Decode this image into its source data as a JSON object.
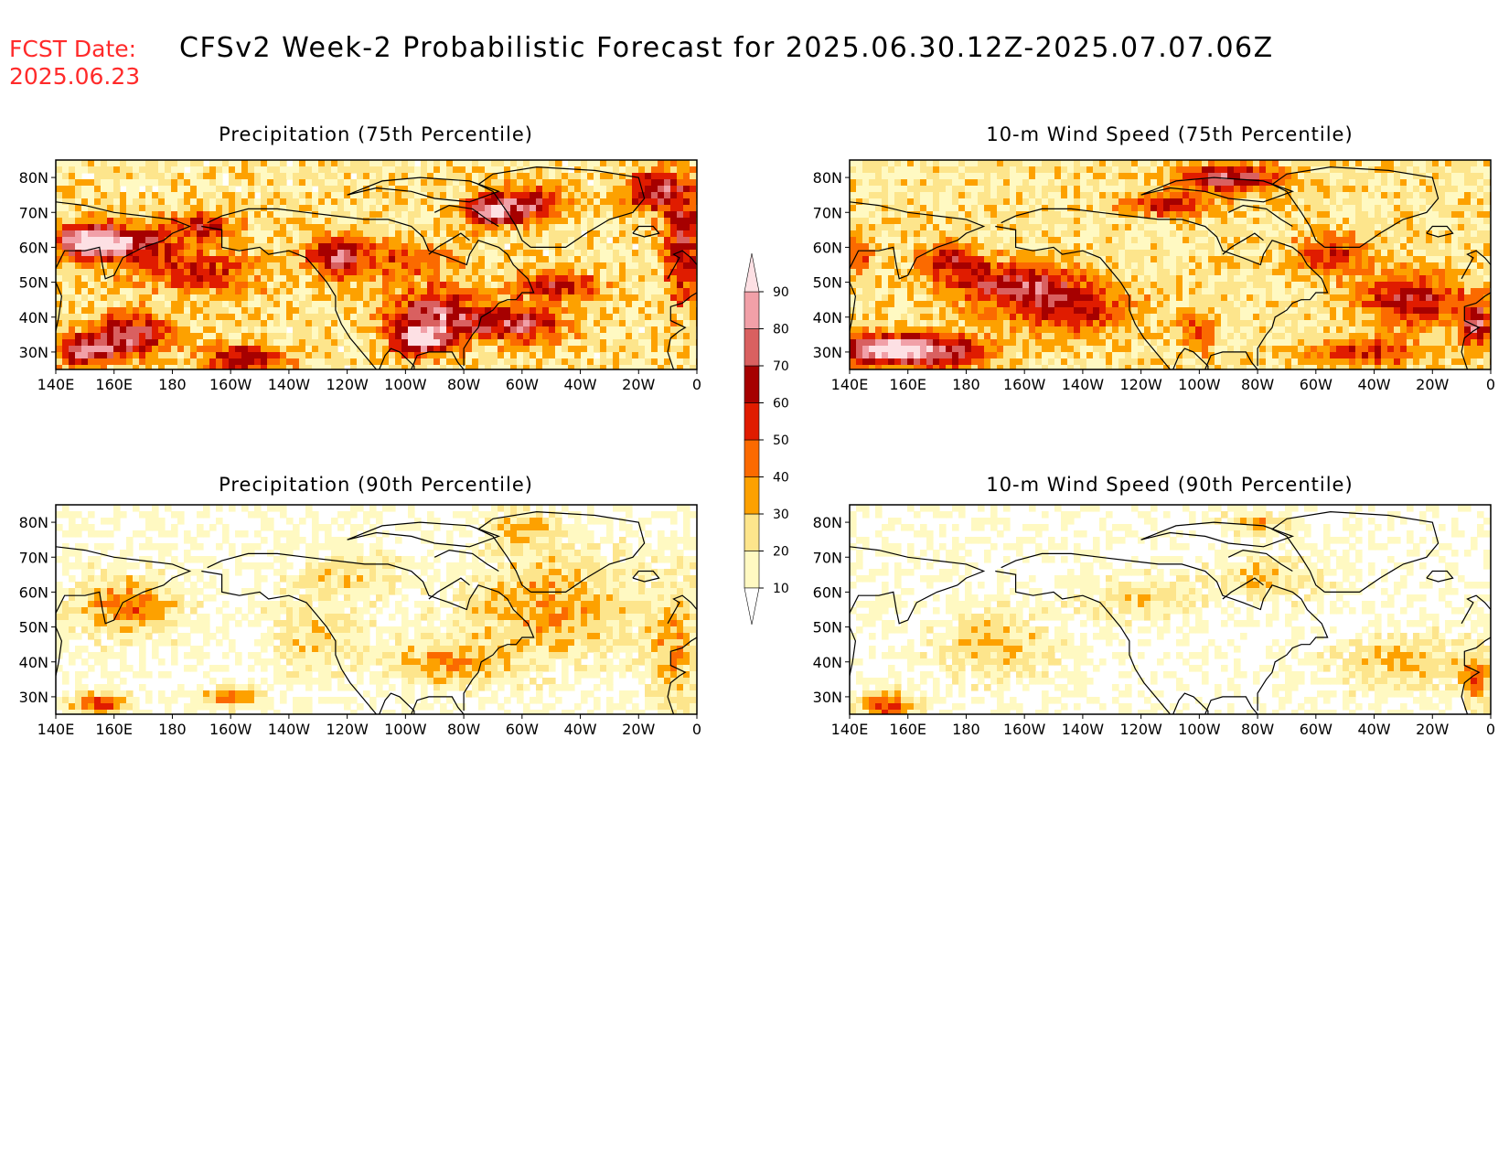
{
  "header": {
    "fcst_label": "FCST Date:",
    "fcst_date": "2025.06.23",
    "title": "CFSv2 Week-2 Probabilistic Forecast for 2025.06.30.12Z-2025.07.07.06Z"
  },
  "panels": [
    {
      "id": "precip-75",
      "title": "Precipitation (75th Percentile)"
    },
    {
      "id": "wind-75",
      "title": "10-m Wind Speed (75th Percentile)"
    },
    {
      "id": "precip-90",
      "title": "Precipitation (90th Percentile)"
    },
    {
      "id": "wind-90",
      "title": "10-m Wind Speed (90th Percentile)"
    }
  ],
  "axes": {
    "lat_labels": [
      "80N",
      "70N",
      "60N",
      "50N",
      "40N",
      "30N"
    ],
    "lon_labels": [
      "140E",
      "160E",
      "180",
      "160W",
      "140W",
      "120W",
      "100W",
      "80W",
      "60W",
      "40W",
      "20W",
      "0"
    ]
  },
  "colorbar": {
    "levels": [
      "10",
      "20",
      "30",
      "40",
      "50",
      "60",
      "70",
      "80",
      "90"
    ],
    "colors": [
      "#fff9c2",
      "#fde58c",
      "#fda100",
      "#fb6a00",
      "#e01c00",
      "#a60000",
      "#d96060",
      "#f1a0a8",
      "#fde0e4"
    ]
  }
}
